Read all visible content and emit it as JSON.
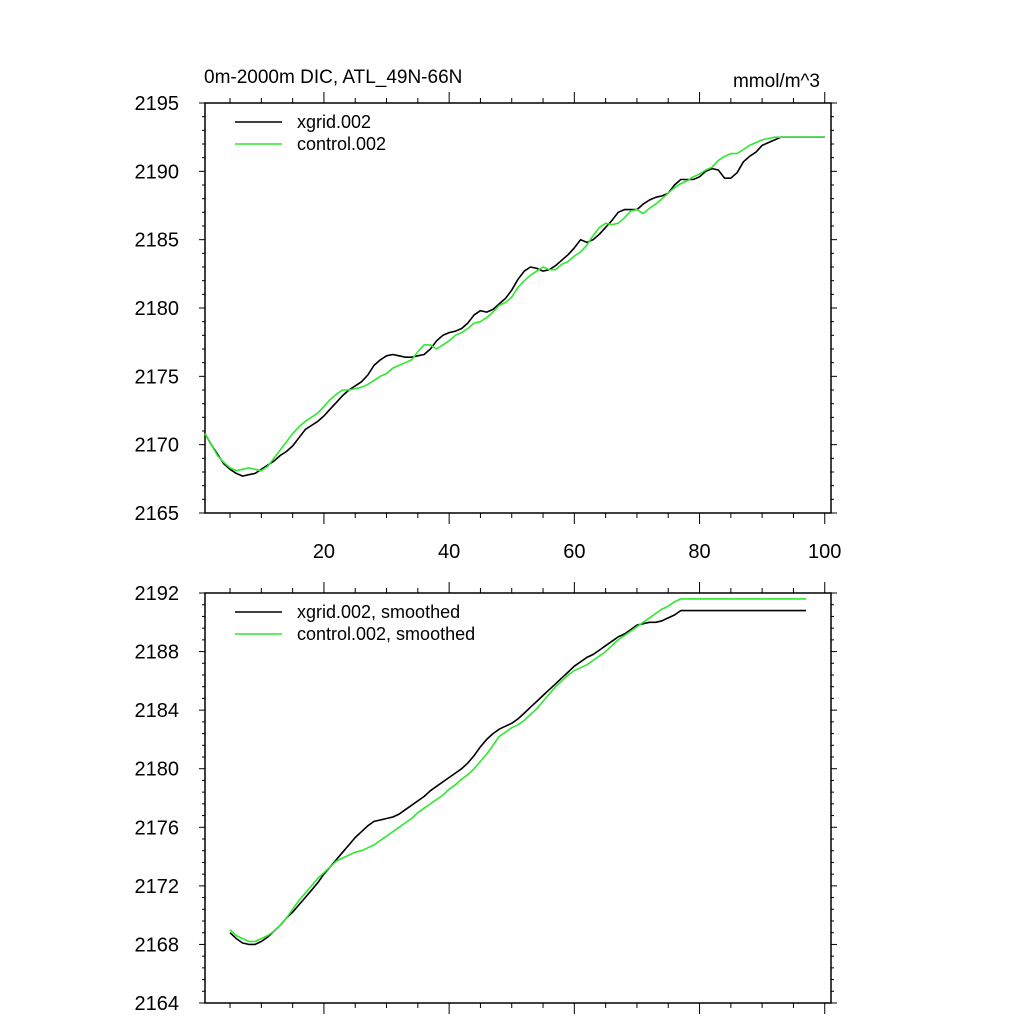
{
  "colors": {
    "xgrid": "#000000",
    "control": "#2ee82e",
    "axis": "#000000",
    "background": "#ffffff"
  },
  "chart_data": [
    {
      "type": "line",
      "title": "0m-2000m DIC, ATL_49N-66N",
      "units": "mmol/m^3",
      "xlim": [
        1,
        101
      ],
      "ylim": [
        2165,
        2195
      ],
      "xticks": [
        20,
        40,
        60,
        80,
        100
      ],
      "yticks": [
        2165,
        2170,
        2175,
        2180,
        2185,
        2190,
        2195
      ],
      "show_xtick_labels": true,
      "legend": {
        "position": "top-left",
        "entries": [
          "xgrid.002",
          "control.002"
        ]
      },
      "series": [
        {
          "name": "xgrid.002",
          "color": "#000000",
          "x": [
            1,
            2,
            3,
            4,
            5,
            6,
            7,
            8,
            9,
            10,
            11,
            12,
            13,
            14,
            15,
            16,
            17,
            18,
            19,
            20,
            21,
            22,
            23,
            24,
            25,
            26,
            27,
            28,
            29,
            30,
            31,
            32,
            33,
            34,
            35,
            36,
            37,
            38,
            39,
            40,
            41,
            42,
            43,
            44,
            45,
            46,
            47,
            48,
            49,
            50,
            51,
            52,
            53,
            54,
            55,
            56,
            57,
            58,
            59,
            60,
            61,
            62,
            63,
            64,
            65,
            66,
            67,
            68,
            69,
            70,
            71,
            72,
            73,
            74,
            75,
            76,
            77,
            78,
            79,
            80,
            81,
            82,
            83,
            84,
            85,
            86,
            87,
            88,
            89,
            90,
            91,
            92,
            93,
            94,
            95,
            96,
            97,
            98,
            99,
            100,
            101
          ],
          "y": [
            2170.8,
            2170.0,
            2169.3,
            2168.6,
            2168.2,
            2167.9,
            2167.7,
            2167.8,
            2167.9,
            2168.2,
            2168.5,
            2168.8,
            2169.2,
            2169.5,
            2169.9,
            2170.5,
            2171.1,
            2171.4,
            2171.7,
            2172.1,
            2172.6,
            2173.1,
            2173.6,
            2174.0,
            2174.3,
            2174.6,
            2175.1,
            2175.8,
            2176.2,
            2176.5,
            2176.6,
            2176.5,
            2176.4,
            2176.4,
            2176.5,
            2176.6,
            2177.0,
            2177.6,
            2178.0,
            2178.2,
            2178.3,
            2178.5,
            2178.9,
            2179.5,
            2179.8,
            2179.7,
            2179.9,
            2180.3,
            2180.7,
            2181.3,
            2182.1,
            2182.7,
            2183.0,
            2182.9,
            2182.7,
            2182.8,
            2183.1,
            2183.5,
            2183.9,
            2184.4,
            2185.0,
            2184.8,
            2185.0,
            2185.4,
            2185.9,
            2186.4,
            2187.0,
            2187.2,
            2187.2,
            2187.2,
            2187.6,
            2187.9,
            2188.1,
            2188.2,
            2188.4,
            2189.0,
            2189.4,
            2189.4,
            2189.4,
            2189.6,
            2190.0,
            2190.2,
            2190.1,
            2189.5,
            2189.5,
            2189.9,
            2190.7,
            2191.1,
            2191.4,
            2191.9,
            2192.1,
            2192.3,
            2192.5,
            2192.5,
            2192.5,
            2192.5,
            2192.5,
            2192.5,
            2192.5,
            2192.5,
            2192.5
          ]
        },
        {
          "name": "control.002",
          "color": "#2ee82e",
          "x": [
            1,
            2,
            3,
            4,
            5,
            6,
            7,
            8,
            9,
            10,
            11,
            12,
            13,
            14,
            15,
            16,
            17,
            18,
            19,
            20,
            21,
            22,
            23,
            24,
            25,
            26,
            27,
            28,
            29,
            30,
            31,
            32,
            33,
            34,
            35,
            36,
            37,
            38,
            39,
            40,
            41,
            42,
            43,
            44,
            45,
            46,
            47,
            48,
            49,
            50,
            51,
            52,
            53,
            54,
            55,
            56,
            57,
            58,
            59,
            60,
            61,
            62,
            63,
            64,
            65,
            66,
            67,
            68,
            69,
            70,
            71,
            72,
            73,
            74,
            75,
            76,
            77,
            78,
            79,
            80,
            81,
            82,
            83,
            84,
            85,
            86,
            87,
            88,
            89,
            90,
            91,
            92,
            93,
            94,
            95,
            96,
            97,
            98,
            99,
            100,
            101
          ],
          "y": [
            2170.8,
            2170.0,
            2169.2,
            2168.7,
            2168.3,
            2168.1,
            2168.2,
            2168.3,
            2168.2,
            2168.1,
            2168.4,
            2169.0,
            2169.6,
            2170.2,
            2170.8,
            2171.3,
            2171.7,
            2172.0,
            2172.3,
            2172.8,
            2173.3,
            2173.7,
            2174.0,
            2174.0,
            2174.1,
            2174.2,
            2174.4,
            2174.7,
            2175.0,
            2175.2,
            2175.6,
            2175.8,
            2176.0,
            2176.2,
            2176.8,
            2177.3,
            2177.3,
            2177.0,
            2177.3,
            2177.6,
            2178.0,
            2178.2,
            2178.5,
            2178.9,
            2179.0,
            2179.3,
            2179.7,
            2180.2,
            2180.4,
            2180.8,
            2181.5,
            2182.0,
            2182.4,
            2182.7,
            2183.0,
            2182.8,
            2182.8,
            2183.2,
            2183.4,
            2183.8,
            2184.1,
            2184.6,
            2185.3,
            2185.9,
            2186.2,
            2186.1,
            2186.2,
            2186.6,
            2187.1,
            2187.2,
            2186.9,
            2187.3,
            2187.6,
            2188.0,
            2188.4,
            2188.8,
            2189.1,
            2189.3,
            2189.6,
            2189.8,
            2190.1,
            2190.3,
            2190.8,
            2191.1,
            2191.3,
            2191.3,
            2191.6,
            2191.9,
            2192.1,
            2192.3,
            2192.4,
            2192.5,
            2192.5,
            2192.5,
            2192.5,
            2192.5,
            2192.5,
            2192.5,
            2192.5,
            2192.5,
            2192.5
          ]
        }
      ]
    },
    {
      "type": "line",
      "title": "",
      "units": "",
      "xlim": [
        1,
        101
      ],
      "ylim": [
        2164,
        2192
      ],
      "xticks": [
        20,
        40,
        60,
        80,
        100
      ],
      "yticks": [
        2164,
        2168,
        2172,
        2176,
        2180,
        2184,
        2188,
        2192
      ],
      "show_xtick_labels": false,
      "legend": {
        "position": "top-left",
        "entries": [
          "xgrid.002, smoothed",
          "control.002, smoothed"
        ]
      },
      "series": [
        {
          "name": "xgrid.002, smoothed",
          "color": "#000000",
          "x": [
            5,
            6,
            7,
            8,
            9,
            10,
            11,
            12,
            13,
            14,
            15,
            16,
            17,
            18,
            19,
            20,
            21,
            22,
            23,
            24,
            25,
            26,
            27,
            28,
            29,
            30,
            31,
            32,
            33,
            34,
            35,
            36,
            37,
            38,
            39,
            40,
            41,
            42,
            43,
            44,
            45,
            46,
            47,
            48,
            49,
            50,
            51,
            52,
            53,
            54,
            55,
            56,
            57,
            58,
            59,
            60,
            61,
            62,
            63,
            64,
            65,
            66,
            67,
            68,
            69,
            70,
            71,
            72,
            73,
            74,
            75,
            76,
            77,
            78,
            79,
            80,
            81,
            82,
            83,
            84,
            85,
            86,
            87,
            88,
            89,
            90,
            91,
            92,
            93,
            94,
            95,
            96,
            97
          ],
          "y": [
            2168.8,
            2168.4,
            2168.1,
            2168.0,
            2168.0,
            2168.2,
            2168.5,
            2168.9,
            2169.3,
            2169.8,
            2170.2,
            2170.7,
            2171.2,
            2171.7,
            2172.2,
            2172.8,
            2173.3,
            2173.8,
            2174.3,
            2174.8,
            2175.3,
            2175.7,
            2176.1,
            2176.4,
            2176.5,
            2176.6,
            2176.7,
            2176.9,
            2177.2,
            2177.5,
            2177.8,
            2178.1,
            2178.5,
            2178.8,
            2179.1,
            2179.4,
            2179.7,
            2180.0,
            2180.4,
            2180.9,
            2181.5,
            2182.0,
            2182.4,
            2182.7,
            2182.9,
            2183.1,
            2183.4,
            2183.8,
            2184.2,
            2184.6,
            2185.0,
            2185.4,
            2185.8,
            2186.2,
            2186.6,
            2187.0,
            2187.3,
            2187.6,
            2187.8,
            2188.1,
            2188.4,
            2188.7,
            2189.0,
            2189.2,
            2189.5,
            2189.8,
            2189.9,
            2190.0,
            2190.0,
            2190.1,
            2190.3,
            2190.5,
            2190.8,
            2190.8,
            2190.8,
            2190.8,
            2190.8,
            2190.8,
            2190.8,
            2190.8,
            2190.8,
            2190.8,
            2190.8,
            2190.8,
            2190.8,
            2190.8,
            2190.8,
            2190.8,
            2190.8,
            2190.8,
            2190.8,
            2190.8,
            2190.8
          ]
        },
        {
          "name": "control.002, smoothed",
          "color": "#2ee82e",
          "x": [
            5,
            6,
            7,
            8,
            9,
            10,
            11,
            12,
            13,
            14,
            15,
            16,
            17,
            18,
            19,
            20,
            21,
            22,
            23,
            24,
            25,
            26,
            27,
            28,
            29,
            30,
            31,
            32,
            33,
            34,
            35,
            36,
            37,
            38,
            39,
            40,
            41,
            42,
            43,
            44,
            45,
            46,
            47,
            48,
            49,
            50,
            51,
            52,
            53,
            54,
            55,
            56,
            57,
            58,
            59,
            60,
            61,
            62,
            63,
            64,
            65,
            66,
            67,
            68,
            69,
            70,
            71,
            72,
            73,
            74,
            75,
            76,
            77,
            78,
            79,
            80,
            81,
            82,
            83,
            84,
            85,
            86,
            87,
            88,
            89,
            90,
            91,
            92,
            93,
            94,
            95,
            96,
            97
          ],
          "y": [
            2169.0,
            2168.6,
            2168.4,
            2168.2,
            2168.2,
            2168.4,
            2168.6,
            2168.9,
            2169.3,
            2169.8,
            2170.4,
            2171.0,
            2171.5,
            2172.0,
            2172.5,
            2172.9,
            2173.3,
            2173.7,
            2173.9,
            2174.1,
            2174.3,
            2174.4,
            2174.6,
            2174.8,
            2175.1,
            2175.4,
            2175.7,
            2176.0,
            2176.3,
            2176.6,
            2177.0,
            2177.3,
            2177.6,
            2177.9,
            2178.2,
            2178.6,
            2178.9,
            2179.3,
            2179.6,
            2180.0,
            2180.5,
            2181.0,
            2181.6,
            2182.2,
            2182.5,
            2182.8,
            2183.0,
            2183.3,
            2183.7,
            2184.1,
            2184.6,
            2185.1,
            2185.6,
            2186.0,
            2186.4,
            2186.7,
            2186.9,
            2187.1,
            2187.4,
            2187.7,
            2188.0,
            2188.4,
            2188.8,
            2189.1,
            2189.4,
            2189.7,
            2190.0,
            2190.3,
            2190.6,
            2190.9,
            2191.1,
            2191.4,
            2191.6,
            2191.6,
            2191.6,
            2191.6,
            2191.6,
            2191.6,
            2191.6,
            2191.6,
            2191.6,
            2191.6,
            2191.6,
            2191.6,
            2191.6,
            2191.6,
            2191.6,
            2191.6,
            2191.6,
            2191.6,
            2191.6,
            2191.6,
            2191.6
          ]
        }
      ]
    }
  ]
}
